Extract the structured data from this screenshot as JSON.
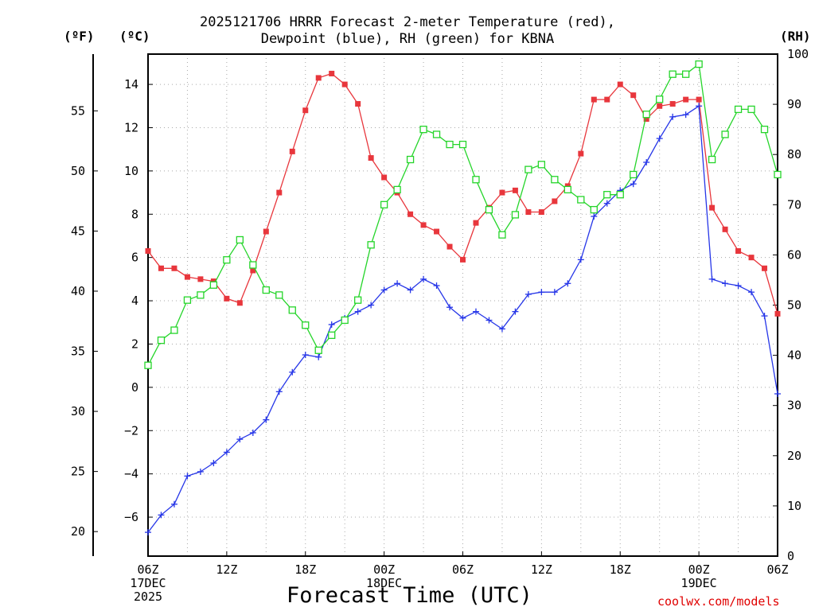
{
  "chart_data": {
    "type": "line",
    "title_line1": "2025121706 HRRR Forecast 2-meter Temperature (red),",
    "title_line2": "Dewpoint (blue), RH (green) for KBNA",
    "xlabel": "Forecast Time (UTC)",
    "credit": "coolwx.com/models",
    "units": {
      "fahrenheit": "(ºF)",
      "celsius": "(ºC)",
      "rh": "(RH)"
    },
    "x_hours": [
      0,
      1,
      2,
      3,
      4,
      5,
      6,
      7,
      8,
      9,
      10,
      11,
      12,
      13,
      14,
      15,
      16,
      17,
      18,
      19,
      20,
      21,
      22,
      23,
      24,
      25,
      26,
      27,
      28,
      29,
      30,
      31,
      32,
      33,
      34,
      35,
      36,
      37,
      38,
      39,
      40,
      41,
      42,
      43,
      44,
      45,
      46,
      47,
      48
    ],
    "x_tick_labels": [
      {
        "hour": 0,
        "lines": [
          "06Z",
          "17DEC",
          "2025"
        ]
      },
      {
        "hour": 6,
        "lines": [
          "12Z"
        ]
      },
      {
        "hour": 12,
        "lines": [
          "18Z"
        ]
      },
      {
        "hour": 18,
        "lines": [
          "00Z",
          "18DEC"
        ]
      },
      {
        "hour": 24,
        "lines": [
          "06Z"
        ]
      },
      {
        "hour": 30,
        "lines": [
          "12Z"
        ]
      },
      {
        "hour": 36,
        "lines": [
          "18Z"
        ]
      },
      {
        "hour": 42,
        "lines": [
          "00Z",
          "19DEC"
        ]
      },
      {
        "hour": 48,
        "lines": [
          "06Z"
        ]
      }
    ],
    "celsius_range": [
      -7.8,
      15.4
    ],
    "celsius_ticks": [
      "-6",
      "-4",
      "-2",
      "0",
      "2",
      "4",
      "6",
      "8",
      "10",
      "12",
      "14"
    ],
    "fahrenheit_ticks": [
      "20",
      "25",
      "30",
      "35",
      "40",
      "45",
      "50",
      "55"
    ],
    "rh_range": [
      0,
      100
    ],
    "rh_ticks": [
      "0",
      "10",
      "20",
      "30",
      "40",
      "50",
      "60",
      "70",
      "80",
      "90",
      "100"
    ],
    "grid": true,
    "series": [
      {
        "name": "2-meter Temperature",
        "axis": "celsius",
        "color": "#e8363c",
        "marker": "filled-square",
        "values": [
          6.3,
          5.5,
          5.5,
          5.1,
          5.0,
          4.9,
          4.1,
          3.9,
          5.4,
          7.2,
          9.0,
          10.9,
          12.8,
          14.3,
          14.5,
          14.0,
          13.1,
          10.6,
          9.7,
          9.0,
          8.0,
          7.5,
          7.2,
          6.5,
          5.9,
          7.6,
          8.3,
          9.0,
          9.1,
          8.1,
          8.1,
          8.6,
          9.3,
          10.8,
          13.3,
          13.3,
          14.0,
          13.5,
          12.4,
          13.0,
          13.1,
          13.3,
          13.3,
          8.3,
          7.3,
          6.3,
          6.0,
          5.5,
          3.4
        ]
      },
      {
        "name": "Dewpoint",
        "axis": "celsius",
        "color": "#2636e8",
        "marker": "plus",
        "values": [
          -6.7,
          -5.9,
          -5.4,
          -4.1,
          -3.9,
          -3.5,
          -3.0,
          -2.4,
          -2.1,
          -1.5,
          -0.2,
          0.7,
          1.5,
          1.4,
          2.9,
          3.2,
          3.5,
          3.8,
          4.5,
          4.8,
          4.5,
          5.0,
          4.7,
          3.7,
          3.2,
          3.5,
          3.1,
          2.7,
          3.5,
          4.3,
          4.4,
          4.4,
          4.8,
          5.9,
          7.9,
          8.5,
          9.1,
          9.4,
          10.4,
          11.5,
          12.5,
          12.6,
          13.0,
          5.0,
          4.8,
          4.7,
          4.4,
          3.3,
          -0.3
        ]
      },
      {
        "name": "RH",
        "axis": "rh",
        "color": "#25d52a",
        "marker": "open-square",
        "values": [
          38,
          43,
          45,
          51,
          52,
          54,
          59,
          63,
          58,
          53,
          52,
          49,
          46,
          41,
          44,
          47,
          51,
          62,
          70,
          73,
          79,
          85,
          84,
          82,
          82,
          75,
          69,
          64,
          68,
          77,
          78,
          75,
          73,
          71,
          69,
          72,
          72,
          76,
          88,
          91,
          96,
          96,
          98,
          79,
          84,
          89,
          89,
          85,
          76
        ]
      }
    ]
  }
}
